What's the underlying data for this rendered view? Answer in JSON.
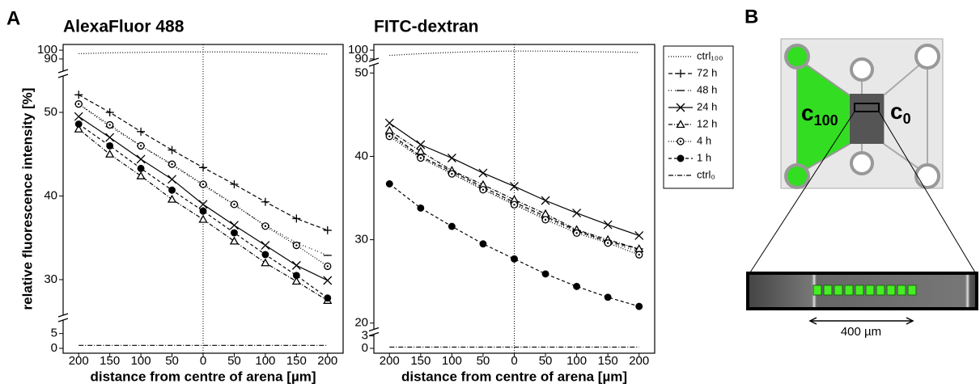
{
  "chart_data": [
    {
      "type": "line",
      "panel": "A",
      "title": "AlexaFluor 488",
      "ylabel": "relative fluorescence intensity [%]",
      "xlabel": "distance from centre of arena [µm]",
      "x": [
        -200,
        -150,
        -100,
        -50,
        0,
        50,
        100,
        150,
        200
      ],
      "xlim": [
        -225,
        225
      ],
      "xticks": [
        {
          "value": -200,
          "label": "200"
        },
        {
          "value": -150,
          "label": "150"
        },
        {
          "value": -100,
          "label": "100"
        },
        {
          "value": -50,
          "label": "50"
        },
        0,
        50,
        100,
        150,
        200
      ],
      "ysegments": [
        [
          0,
          6
        ],
        [
          27,
          53
        ],
        [
          89,
          101
        ]
      ],
      "yticks": [
        0,
        5,
        30,
        40,
        50,
        90,
        100
      ],
      "series": [
        {
          "name": "ctrl₁₀₀",
          "color": "#000000",
          "dash": "1,2",
          "marker": "none",
          "values": [
            96,
            97,
            97.5,
            98,
            98,
            98,
            97.5,
            96.5,
            95.5
          ]
        },
        {
          "name": "72 h",
          "color": "#000000",
          "dash": "5,3",
          "marker": "plus",
          "values": [
            52.1,
            50.0,
            47.7,
            45.5,
            43.4,
            41.4,
            39.3,
            37.3,
            35.9
          ]
        },
        {
          "name": "48 h",
          "color": "#000000",
          "dash": "1,2,1,4",
          "marker": "dash",
          "values": [
            51.0,
            48.3,
            46.0,
            43.7,
            41.3,
            38.9,
            36.5,
            34.4,
            32.9
          ]
        },
        {
          "name": "24 h",
          "color": "#000000",
          "dash": "none",
          "marker": "cross",
          "values": [
            49.5,
            47.0,
            44.4,
            42.0,
            39.0,
            36.5,
            34.1,
            31.7,
            29.9
          ]
        },
        {
          "name": "12 h",
          "color": "#000000",
          "dash": "5,2,1,2",
          "marker": "triangle",
          "values": [
            48.0,
            45.0,
            42.4,
            39.6,
            37.2,
            34.6,
            32.0,
            29.8,
            27.5
          ]
        },
        {
          "name": "4 h",
          "color": "#000000",
          "dash": "1,2",
          "marker": "ring",
          "values": [
            51.0,
            48.5,
            46.0,
            43.8,
            41.4,
            39.0,
            36.4,
            34.1,
            31.6
          ]
        },
        {
          "name": "1 h",
          "color": "#000000",
          "dash": "4,3",
          "marker": "dot",
          "values": [
            48.6,
            46.0,
            43.3,
            40.7,
            38.2,
            35.6,
            33.0,
            30.5,
            27.8
          ]
        },
        {
          "name": "ctrl₀",
          "color": "#000000",
          "dash": "6,2,1,2",
          "marker": "none",
          "values": [
            1,
            1,
            1,
            1,
            1,
            1,
            1,
            1,
            1
          ]
        }
      ]
    },
    {
      "type": "line",
      "title": "FITC-dextran",
      "xlabel": "distance from centre of arena [µm]",
      "x": [
        -200,
        -150,
        -100,
        -50,
        0,
        50,
        100,
        150,
        200
      ],
      "xlim": [
        -225,
        225
      ],
      "xticks": [
        {
          "value": -200,
          "label": "200"
        },
        {
          "value": -150,
          "label": "150"
        },
        {
          "value": -100,
          "label": "100"
        },
        {
          "value": -50,
          "label": "50"
        },
        0,
        50,
        100,
        150,
        200
      ],
      "ysegments": [
        [
          0,
          3.5
        ],
        [
          19.2,
          51
        ],
        [
          89,
          101
        ]
      ],
      "yticks": [
        0,
        3,
        20,
        30,
        40,
        50,
        90,
        100
      ],
      "series": [
        {
          "color": "#000000",
          "dash": "1,2",
          "marker": "none",
          "values": [
            94,
            96,
            97.5,
            98.5,
            99,
            99,
            98.5,
            98,
            97.5
          ]
        },
        {
          "color": "#000000",
          "dash": "5,3",
          "marker": "plus",
          "values": [
            42.8,
            40.0,
            38.2,
            36.3,
            34.5,
            32.8,
            31.1,
            29.8,
            28.9
          ]
        },
        {
          "color": "#000000",
          "dash": "1,2,1,4",
          "marker": "dash",
          "values": [
            42.6,
            39.9,
            38.0,
            36.1,
            34.3,
            32.6,
            31.0,
            29.7,
            28.6
          ]
        },
        {
          "color": "#000000",
          "dash": "none",
          "marker": "cross",
          "values": [
            44.0,
            41.4,
            39.8,
            38.0,
            36.4,
            34.7,
            33.2,
            31.8,
            30.5
          ]
        },
        {
          "color": "#000000",
          "dash": "5,2,1,2",
          "marker": "triangle",
          "values": [
            43.1,
            40.6,
            38.3,
            36.6,
            34.8,
            33.1,
            31.2,
            30.0,
            28.9
          ]
        },
        {
          "color": "#000000",
          "dash": "1,2",
          "marker": "ring",
          "values": [
            42.4,
            39.8,
            37.9,
            36.0,
            34.2,
            32.4,
            30.8,
            29.6,
            28.2
          ]
        },
        {
          "color": "#000000",
          "dash": "4,3",
          "marker": "dot",
          "values": [
            36.7,
            33.8,
            31.6,
            29.5,
            27.7,
            25.9,
            24.4,
            23.1,
            22.0
          ]
        },
        {
          "color": "#000000",
          "dash": "6,2,1,2",
          "marker": "none",
          "values": [
            0.3,
            0.3,
            0.3,
            0.3,
            0.3,
            0.3,
            0.3,
            0.3,
            0.3
          ]
        }
      ]
    }
  ],
  "panel_b": {
    "label": "B",
    "left_chamber": {
      "base": "c",
      "sub": "100"
    },
    "right_chamber": {
      "base": "c",
      "sub": "0"
    },
    "scale_bar": "400 µm"
  }
}
